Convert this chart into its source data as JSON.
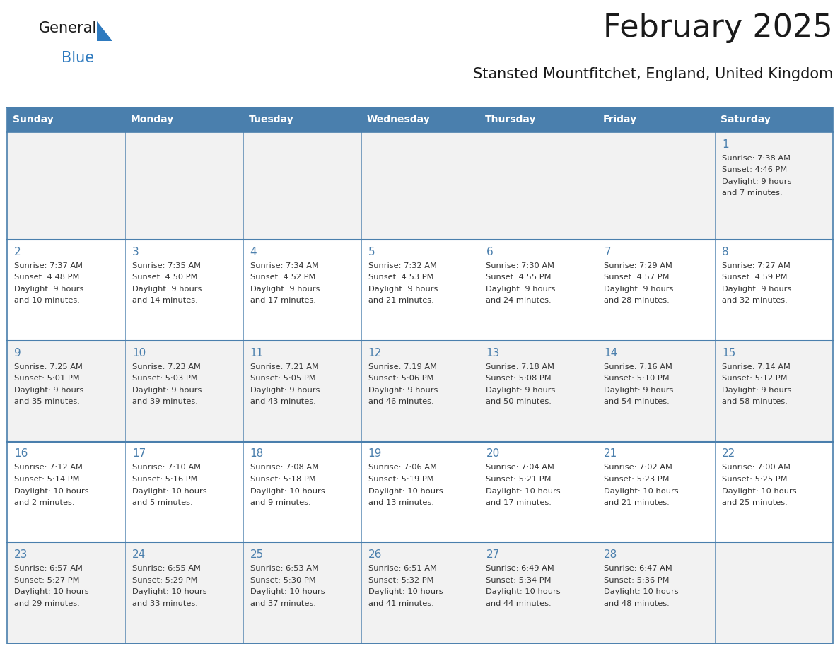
{
  "title": "February 2025",
  "subtitle": "Stansted Mountfitchet, England, United Kingdom",
  "days_of_week": [
    "Sunday",
    "Monday",
    "Tuesday",
    "Wednesday",
    "Thursday",
    "Friday",
    "Saturday"
  ],
  "header_bg": "#4a7fad",
  "header_text": "#ffffff",
  "cell_bg_odd": "#f2f2f2",
  "cell_bg_even": "#ffffff",
  "border_color": "#4a7fad",
  "day_num_color": "#4a7fad",
  "info_text_color": "#333333",
  "title_color": "#1a1a1a",
  "subtitle_color": "#1a1a1a",
  "logo_general_color": "#1a1a1a",
  "logo_blue_color": "#2e7abf",
  "weeks": [
    [
      null,
      null,
      null,
      null,
      null,
      null,
      {
        "day": 1,
        "sunrise": "7:38 AM",
        "sunset": "4:46 PM",
        "daylight": "9 hours\nand 7 minutes."
      }
    ],
    [
      {
        "day": 2,
        "sunrise": "7:37 AM",
        "sunset": "4:48 PM",
        "daylight": "9 hours\nand 10 minutes."
      },
      {
        "day": 3,
        "sunrise": "7:35 AM",
        "sunset": "4:50 PM",
        "daylight": "9 hours\nand 14 minutes."
      },
      {
        "day": 4,
        "sunrise": "7:34 AM",
        "sunset": "4:52 PM",
        "daylight": "9 hours\nand 17 minutes."
      },
      {
        "day": 5,
        "sunrise": "7:32 AM",
        "sunset": "4:53 PM",
        "daylight": "9 hours\nand 21 minutes."
      },
      {
        "day": 6,
        "sunrise": "7:30 AM",
        "sunset": "4:55 PM",
        "daylight": "9 hours\nand 24 minutes."
      },
      {
        "day": 7,
        "sunrise": "7:29 AM",
        "sunset": "4:57 PM",
        "daylight": "9 hours\nand 28 minutes."
      },
      {
        "day": 8,
        "sunrise": "7:27 AM",
        "sunset": "4:59 PM",
        "daylight": "9 hours\nand 32 minutes."
      }
    ],
    [
      {
        "day": 9,
        "sunrise": "7:25 AM",
        "sunset": "5:01 PM",
        "daylight": "9 hours\nand 35 minutes."
      },
      {
        "day": 10,
        "sunrise": "7:23 AM",
        "sunset": "5:03 PM",
        "daylight": "9 hours\nand 39 minutes."
      },
      {
        "day": 11,
        "sunrise": "7:21 AM",
        "sunset": "5:05 PM",
        "daylight": "9 hours\nand 43 minutes."
      },
      {
        "day": 12,
        "sunrise": "7:19 AM",
        "sunset": "5:06 PM",
        "daylight": "9 hours\nand 46 minutes."
      },
      {
        "day": 13,
        "sunrise": "7:18 AM",
        "sunset": "5:08 PM",
        "daylight": "9 hours\nand 50 minutes."
      },
      {
        "day": 14,
        "sunrise": "7:16 AM",
        "sunset": "5:10 PM",
        "daylight": "9 hours\nand 54 minutes."
      },
      {
        "day": 15,
        "sunrise": "7:14 AM",
        "sunset": "5:12 PM",
        "daylight": "9 hours\nand 58 minutes."
      }
    ],
    [
      {
        "day": 16,
        "sunrise": "7:12 AM",
        "sunset": "5:14 PM",
        "daylight": "10 hours\nand 2 minutes."
      },
      {
        "day": 17,
        "sunrise": "7:10 AM",
        "sunset": "5:16 PM",
        "daylight": "10 hours\nand 5 minutes."
      },
      {
        "day": 18,
        "sunrise": "7:08 AM",
        "sunset": "5:18 PM",
        "daylight": "10 hours\nand 9 minutes."
      },
      {
        "day": 19,
        "sunrise": "7:06 AM",
        "sunset": "5:19 PM",
        "daylight": "10 hours\nand 13 minutes."
      },
      {
        "day": 20,
        "sunrise": "7:04 AM",
        "sunset": "5:21 PM",
        "daylight": "10 hours\nand 17 minutes."
      },
      {
        "day": 21,
        "sunrise": "7:02 AM",
        "sunset": "5:23 PM",
        "daylight": "10 hours\nand 21 minutes."
      },
      {
        "day": 22,
        "sunrise": "7:00 AM",
        "sunset": "5:25 PM",
        "daylight": "10 hours\nand 25 minutes."
      }
    ],
    [
      {
        "day": 23,
        "sunrise": "6:57 AM",
        "sunset": "5:27 PM",
        "daylight": "10 hours\nand 29 minutes."
      },
      {
        "day": 24,
        "sunrise": "6:55 AM",
        "sunset": "5:29 PM",
        "daylight": "10 hours\nand 33 minutes."
      },
      {
        "day": 25,
        "sunrise": "6:53 AM",
        "sunset": "5:30 PM",
        "daylight": "10 hours\nand 37 minutes."
      },
      {
        "day": 26,
        "sunrise": "6:51 AM",
        "sunset": "5:32 PM",
        "daylight": "10 hours\nand 41 minutes."
      },
      {
        "day": 27,
        "sunrise": "6:49 AM",
        "sunset": "5:34 PM",
        "daylight": "10 hours\nand 44 minutes."
      },
      {
        "day": 28,
        "sunrise": "6:47 AM",
        "sunset": "5:36 PM",
        "daylight": "10 hours\nand 48 minutes."
      },
      null
    ]
  ],
  "fig_width": 11.88,
  "fig_height": 9.18
}
